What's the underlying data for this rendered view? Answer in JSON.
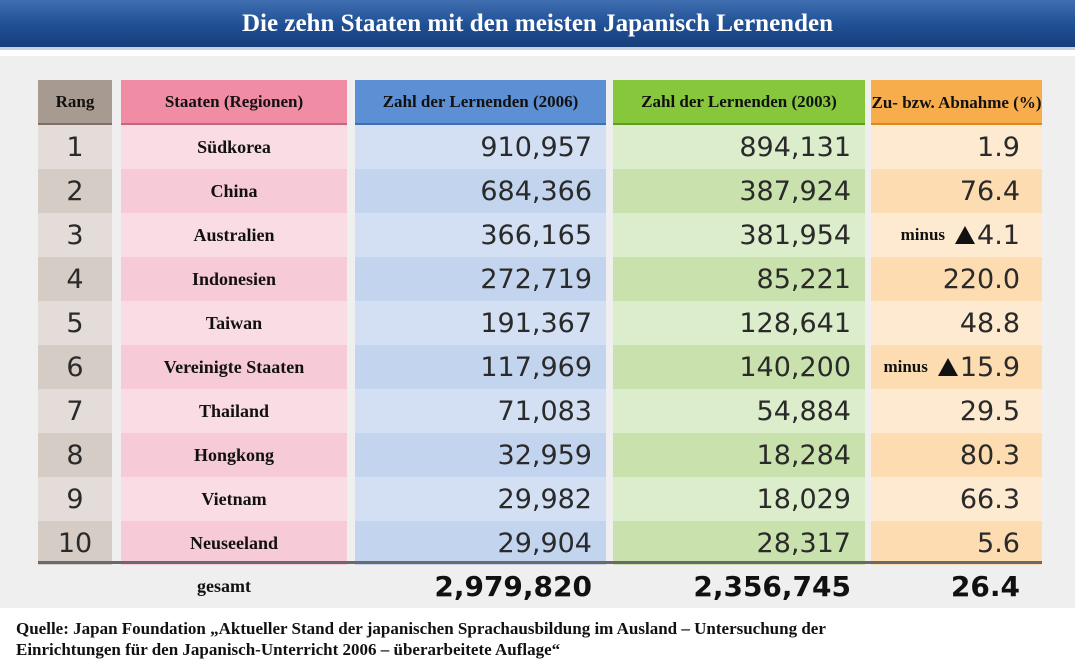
{
  "title": "Die zehn Staaten mit den meisten Japanisch Lernenden",
  "colors": {
    "rank": "#a79a90",
    "country": "#f08ca4",
    "count_2006": "#5c8fd4",
    "count_2003": "#86c73c",
    "change": "#f7ad4c"
  },
  "chart_data": {
    "type": "table",
    "title": "Die zehn Staaten mit den meisten Japanisch Lernenden",
    "columns": [
      "Rang",
      "Staaten (Regionen)",
      "Zahl der Lernenden (2006)",
      "Zahl der Lernenden (2003)",
      "Zu- bzw. Abnahme (%)"
    ],
    "rows": [
      {
        "rank": "1",
        "country": "Südkorea",
        "count_2006": "910,957",
        "count_2003": "894,131",
        "change_prefix": "",
        "negative": false,
        "change": "1.9"
      },
      {
        "rank": "2",
        "country": "China",
        "count_2006": "684,366",
        "count_2003": "387,924",
        "change_prefix": "",
        "negative": false,
        "change": "76.4"
      },
      {
        "rank": "3",
        "country": "Australien",
        "count_2006": "366,165",
        "count_2003": "381,954",
        "change_prefix": "minus",
        "negative": true,
        "change": "4.1"
      },
      {
        "rank": "4",
        "country": "Indonesien",
        "count_2006": "272,719",
        "count_2003": "85,221",
        "change_prefix": "",
        "negative": false,
        "change": "220.0"
      },
      {
        "rank": "5",
        "country": "Taiwan",
        "count_2006": "191,367",
        "count_2003": "128,641",
        "change_prefix": "",
        "negative": false,
        "change": "48.8"
      },
      {
        "rank": "6",
        "country": "Vereinigte Staaten",
        "count_2006": "117,969",
        "count_2003": "140,200",
        "change_prefix": "minus",
        "negative": true,
        "change": "15.9"
      },
      {
        "rank": "7",
        "country": "Thailand",
        "count_2006": "71,083",
        "count_2003": "54,884",
        "change_prefix": "",
        "negative": false,
        "change": "29.5"
      },
      {
        "rank": "8",
        "country": "Hongkong",
        "count_2006": "32,959",
        "count_2003": "18,284",
        "change_prefix": "",
        "negative": false,
        "change": "80.3"
      },
      {
        "rank": "9",
        "country": "Vietnam",
        "count_2006": "29,982",
        "count_2003": "18,029",
        "change_prefix": "",
        "negative": false,
        "change": "66.3"
      },
      {
        "rank": "10",
        "country": "Neuseeland",
        "count_2006": "29,904",
        "count_2003": "28,317",
        "change_prefix": "",
        "negative": false,
        "change": "5.6"
      }
    ],
    "total": {
      "label": "gesamt",
      "count_2006": "2,979,820",
      "count_2003": "2,356,745",
      "change": "26.4"
    }
  },
  "source_line1": "Quelle: Japan Foundation „Aktueller Stand der japanischen Sprachausbildung im Ausland – Untersuchung der",
  "source_line2": "Einrichtungen für den Japanisch-Unterricht 2006 – überarbeitete Auflage“"
}
